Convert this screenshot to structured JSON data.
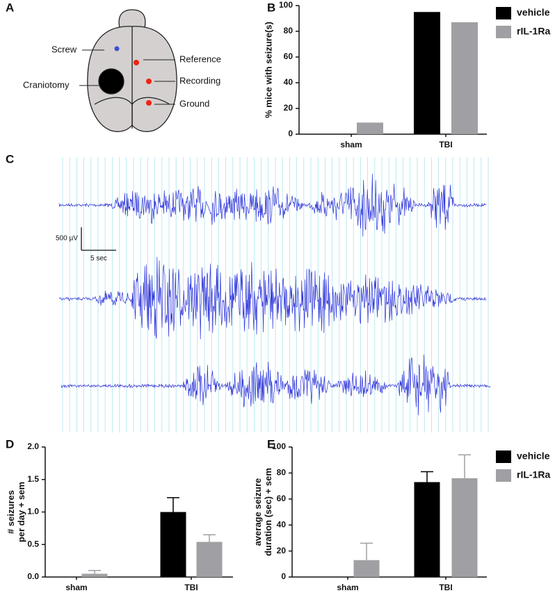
{
  "panels": [
    "A",
    "B",
    "C",
    "D",
    "E"
  ],
  "diagram": {
    "labels": [
      "Screw",
      "Reference",
      "Craniotomy",
      "Recording",
      "Ground"
    ]
  },
  "eeg": {
    "amplitude_scale": "500 µV",
    "time_scale": "5 sec"
  },
  "chart_data": [
    {
      "type": "bar",
      "ylabel": [
        "% mice with seizure(s)"
      ],
      "categories": [
        "sham",
        "TBI"
      ],
      "series": [
        {
          "name": "vehicle",
          "color": "#000000",
          "values": [
            0,
            95
          ]
        },
        {
          "name": "rIL-1Ra",
          "color": "#a0a0a4",
          "values": [
            9,
            87
          ]
        }
      ],
      "ylim": [
        0,
        100
      ],
      "yticks": [
        0,
        20,
        40,
        60,
        80,
        100
      ],
      "legend": "upper right"
    },
    {
      "type": "bar",
      "ylabel": [
        "# seizures",
        "per day + sem"
      ],
      "categories": [
        "sham",
        "TBI"
      ],
      "series": [
        {
          "name": "vehicle",
          "color": "#000000",
          "values": [
            0,
            1.0
          ],
          "errors": [
            null,
            0.22
          ]
        },
        {
          "name": "rIL-1Ra",
          "color": "#a0a0a4",
          "values": [
            0.05,
            0.54
          ],
          "errors": [
            0.05,
            0.11
          ]
        }
      ],
      "ylim": [
        0,
        2
      ],
      "yticks": [
        {
          "value": 0,
          "label": "0.0"
        },
        {
          "value": 0.5,
          "label": "0.5"
        },
        {
          "value": 1,
          "label": "1.0"
        },
        {
          "value": 1.5,
          "label": "1.5"
        },
        {
          "value": 2,
          "label": "2.0"
        }
      ],
      "legend": "none"
    },
    {
      "type": "bar",
      "ylabel": [
        "average seizure",
        "duration (sec) + sem"
      ],
      "categories": [
        "sham",
        "TBI"
      ],
      "series": [
        {
          "name": "vehicle",
          "color": "#000000",
          "values": [
            0,
            73
          ],
          "errors": [
            null,
            8
          ]
        },
        {
          "name": "rIL-1Ra",
          "color": "#a0a0a4",
          "values": [
            13,
            76
          ],
          "errors": [
            13,
            18
          ]
        }
      ],
      "ylim": [
        0,
        100
      ],
      "yticks": [
        0,
        20,
        40,
        60,
        80,
        100
      ],
      "legend": "upper right"
    }
  ]
}
